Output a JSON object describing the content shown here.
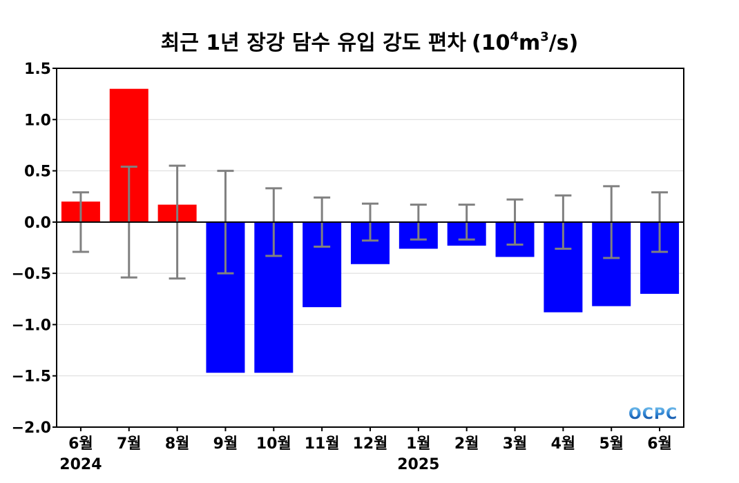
{
  "chart_data": {
    "type": "bar",
    "title": "최근 1년 장강 담수 유입 강도 편차",
    "title_unit_base": "(10",
    "title_unit_exp1": "4",
    "title_unit_mid": "m",
    "title_unit_exp2": "3",
    "title_unit_end": "/s)",
    "categories": [
      "6월",
      "7월",
      "8월",
      "9월",
      "10월",
      "11월",
      "12월",
      "1월",
      "2월",
      "3월",
      "4월",
      "5월",
      "6월"
    ],
    "year_labels": [
      {
        "label": "2024",
        "category_index": 0
      },
      {
        "label": "2025",
        "category_index": 7
      }
    ],
    "values": [
      0.2,
      1.3,
      0.17,
      -1.47,
      -1.47,
      -0.83,
      -0.41,
      -0.26,
      -0.23,
      -0.34,
      -0.88,
      -0.82,
      -0.7
    ],
    "error": [
      0.29,
      0.54,
      0.55,
      0.5,
      0.33,
      0.24,
      0.18,
      0.17,
      0.17,
      0.22,
      0.26,
      0.35,
      0.29
    ],
    "ylim": [
      -2.0,
      1.5
    ],
    "yticks": [
      1.5,
      1.0,
      0.5,
      0.0,
      -0.5,
      -1.0,
      -1.5,
      -2.0
    ],
    "ytick_labels": [
      "1.5",
      "1.0",
      "0.5",
      "0.0",
      "−0.5",
      "−1.0",
      "−1.5",
      "−2.0"
    ],
    "grid": true,
    "colors": {
      "positive": "#ff0000",
      "negative": "#0000ff",
      "error_bar": "#808080",
      "grid": "#d9d9d9"
    },
    "logo": "OCPC"
  }
}
